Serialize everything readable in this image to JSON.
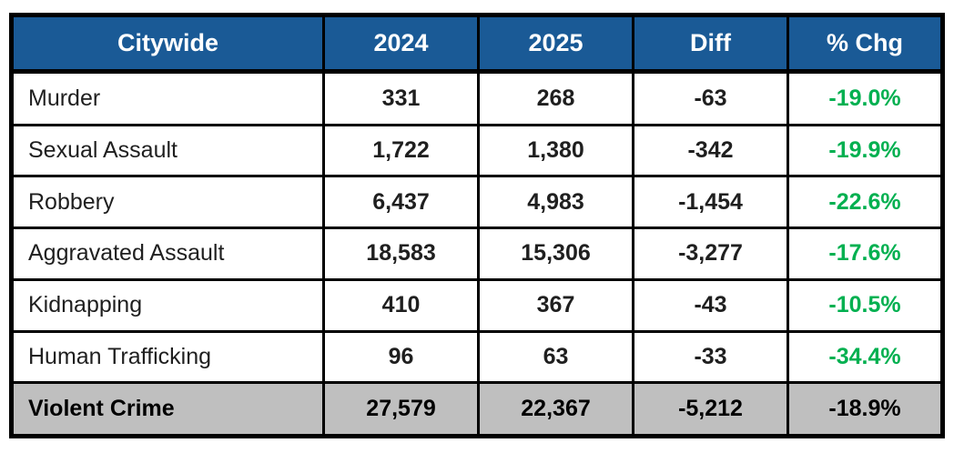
{
  "table": {
    "columns": [
      "Citywide",
      "2024",
      "2025",
      "Diff",
      "% Chg"
    ],
    "rows": [
      {
        "label": "Murder",
        "cells": [
          "331",
          "268",
          "-63",
          "-19.0%"
        ]
      },
      {
        "label": "Sexual Assault",
        "cells": [
          "1,722",
          "1,380",
          "-342",
          "-19.9%"
        ]
      },
      {
        "label": "Robbery",
        "cells": [
          "6,437",
          "4,983",
          "-1,454",
          "-22.6%"
        ]
      },
      {
        "label": "Aggravated Assault",
        "cells": [
          "18,583",
          "15,306",
          "-3,277",
          "-17.6%"
        ]
      },
      {
        "label": "Kidnapping",
        "cells": [
          "410",
          "367",
          "-43",
          "-10.5%"
        ]
      },
      {
        "label": "Human Trafficking",
        "cells": [
          "96",
          "63",
          "-33",
          "-34.4%"
        ]
      }
    ],
    "total": {
      "label": "Violent Crime",
      "cells": [
        "27,579",
        "22,367",
        "-5,212",
        "-18.9%"
      ]
    }
  },
  "colors": {
    "header_bg": "#1A5A96",
    "header_text": "#FFFFFF",
    "pct_change_green": "#00B050",
    "total_row_bg": "#BFBFBF",
    "border": "#000000"
  },
  "chart_data": {
    "type": "table",
    "title": "",
    "columns": [
      "Citywide",
      "2024",
      "2025",
      "Diff",
      "% Chg"
    ],
    "categories": [
      "Murder",
      "Sexual Assault",
      "Robbery",
      "Aggravated Assault",
      "Kidnapping",
      "Human Trafficking",
      "Violent Crime"
    ],
    "series": [
      {
        "name": "2024",
        "values": [
          331,
          1722,
          6437,
          18583,
          410,
          96,
          27579
        ]
      },
      {
        "name": "2025",
        "values": [
          268,
          1380,
          4983,
          15306,
          367,
          63,
          22367
        ]
      },
      {
        "name": "Diff",
        "values": [
          -63,
          -342,
          -1454,
          -3277,
          -43,
          -33,
          -5212
        ]
      },
      {
        "name": "% Chg",
        "values": [
          -19.0,
          -19.9,
          -22.6,
          -17.6,
          -10.5,
          -34.4,
          -18.9
        ]
      }
    ]
  }
}
